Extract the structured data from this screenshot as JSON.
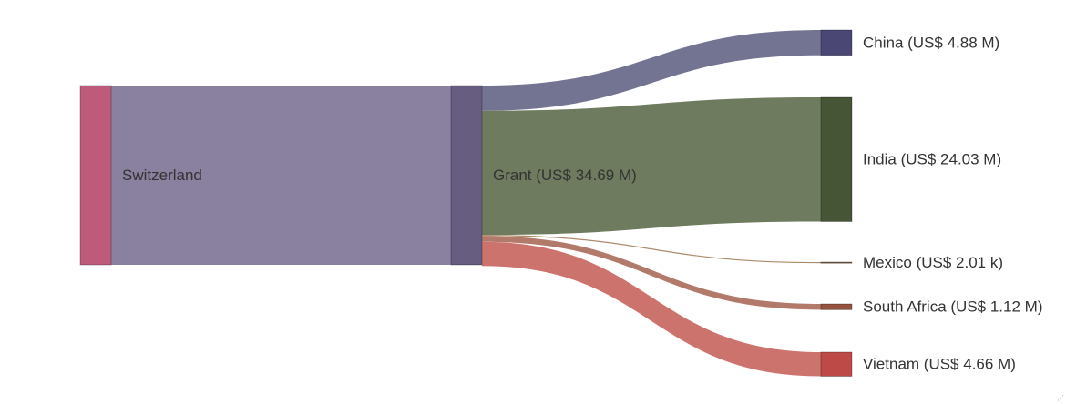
{
  "chart_data": {
    "type": "sankey",
    "unit": "US$",
    "nodes": [
      {
        "id": "switzerland",
        "label": "Switzerland",
        "color": "#be5b7a"
      },
      {
        "id": "grant",
        "label": "Grant (US$ 34.69 M)",
        "color": "#665d80"
      },
      {
        "id": "china",
        "label": "China (US$ 4.88 M)",
        "color": "#4a4775"
      },
      {
        "id": "india",
        "label": "India (US$ 24.03 M)",
        "color": "#465535"
      },
      {
        "id": "mexico",
        "label": "Mexico (US$ 2.01 k)",
        "color": "#7d5a3f"
      },
      {
        "id": "south_africa",
        "label": "South Africa (US$ 1.12 M)",
        "color": "#955340"
      },
      {
        "id": "vietnam",
        "label": "Vietnam (US$ 4.66 M)",
        "color": "#bd4a47"
      }
    ],
    "links": [
      {
        "source": "switzerland",
        "target": "grant",
        "value": 34690000,
        "color": "#8a80a0"
      },
      {
        "source": "grant",
        "target": "china",
        "value": 4880000,
        "color": "#737392"
      },
      {
        "source": "grant",
        "target": "india",
        "value": 24030000,
        "color": "#6e7b5e"
      },
      {
        "source": "grant",
        "target": "mexico",
        "value": 2010,
        "color": "#ad8a6a"
      },
      {
        "source": "grant",
        "target": "south_africa",
        "value": 1120000,
        "color": "#b27a6a"
      },
      {
        "source": "grant",
        "target": "vietnam",
        "value": 4660000,
        "color": "#cd736d"
      }
    ]
  }
}
